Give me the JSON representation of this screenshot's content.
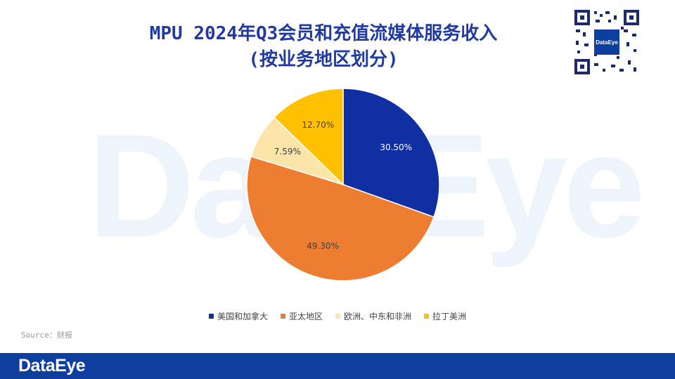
{
  "watermark": "DataEye",
  "title": {
    "line1": "MPU 2024年Q3会员和充值流媒体服务收入",
    "line2": "(按业务地区划分)"
  },
  "qr": {
    "label": "DataEye",
    "icon": "qr-code-icon"
  },
  "source": "Source：财报",
  "footer": {
    "logo": "DataEye"
  },
  "chart_data": {
    "type": "pie",
    "start_angle_deg": 0,
    "direction": "clockwise",
    "legend_position": "bottom",
    "slices": [
      {
        "name": "美国和加拿大",
        "value": 30.5,
        "label": "30.50%",
        "color": "#0f2fa3",
        "label_color": "#ffffff"
      },
      {
        "name": "亚太地区",
        "value": 49.3,
        "label": "49.30%",
        "color": "#ed7d31",
        "label_color": "#404040"
      },
      {
        "name": "欧洲、中东和非洲",
        "value": 7.59,
        "label": "7.59%",
        "color": "#fbe5a8",
        "label_color": "#404040"
      },
      {
        "name": "拉丁美洲",
        "value": 12.7,
        "label": "12.70%",
        "color": "#ffc000",
        "label_color": "#404040"
      }
    ]
  }
}
